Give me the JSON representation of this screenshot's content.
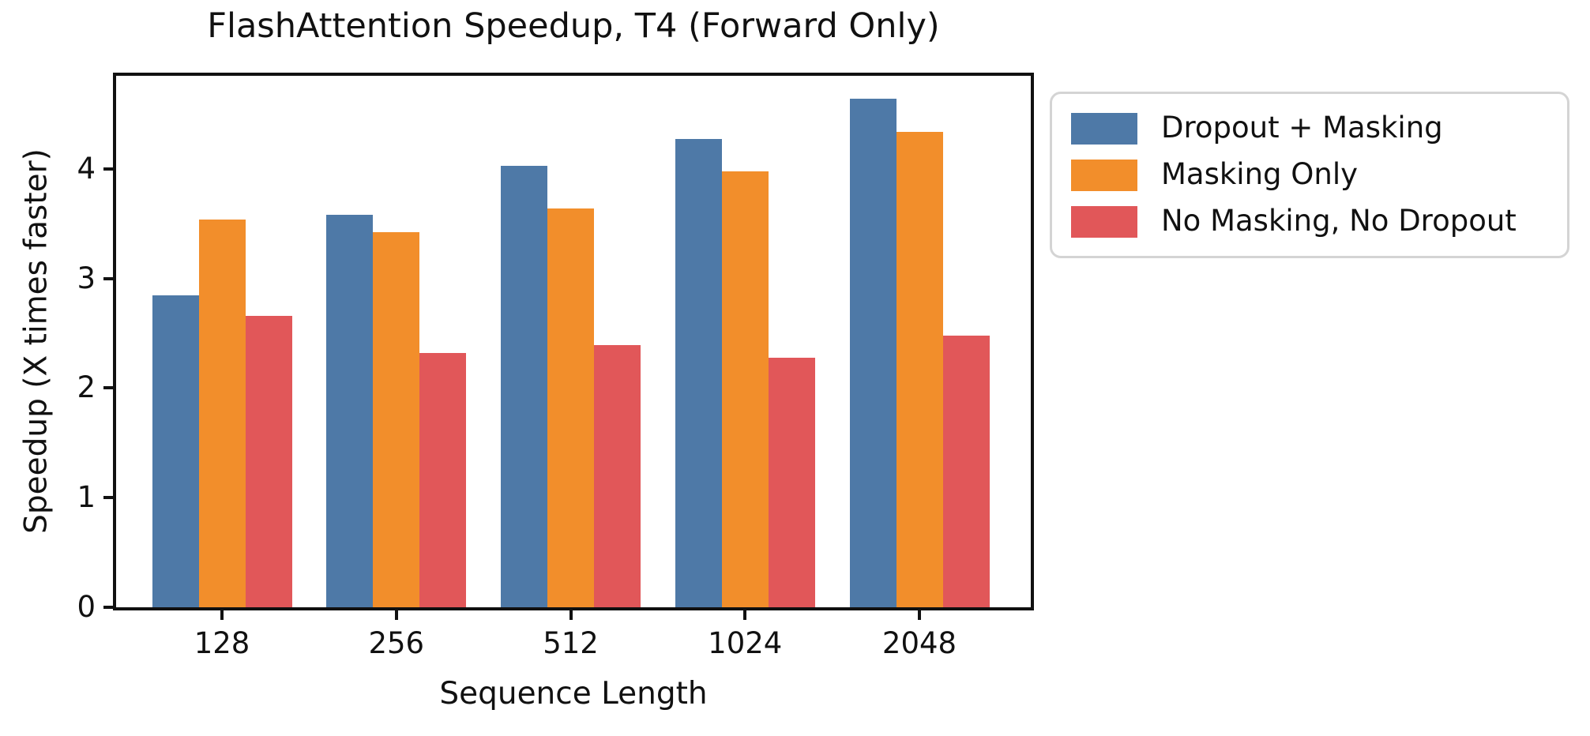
{
  "chart_data": {
    "type": "bar",
    "title": "FlashAttention Speedup, T4 (Forward Only)",
    "xlabel": "Sequence Length",
    "ylabel": "Speedup (X times faster)",
    "categories": [
      "128",
      "256",
      "512",
      "1024",
      "2048"
    ],
    "series": [
      {
        "name": "Dropout + Masking",
        "color": "#4e79a7",
        "values": [
          2.85,
          3.58,
          4.03,
          4.27,
          4.64
        ]
      },
      {
        "name": "Masking Only",
        "color": "#f28e2b",
        "values": [
          3.54,
          3.42,
          3.64,
          3.98,
          4.34
        ]
      },
      {
        "name": "No Masking, No Dropout",
        "color": "#e15759",
        "values": [
          2.66,
          2.32,
          2.39,
          2.28,
          2.48
        ]
      }
    ],
    "ylim": [
      0,
      4.85
    ],
    "yticks": [
      0,
      1,
      2,
      3,
      4
    ],
    "grid": false,
    "legend_position": "outside upper right",
    "colors": {
      "axis": "#111111",
      "legend_border": "#d4d4d4",
      "background": "#ffffff"
    }
  }
}
